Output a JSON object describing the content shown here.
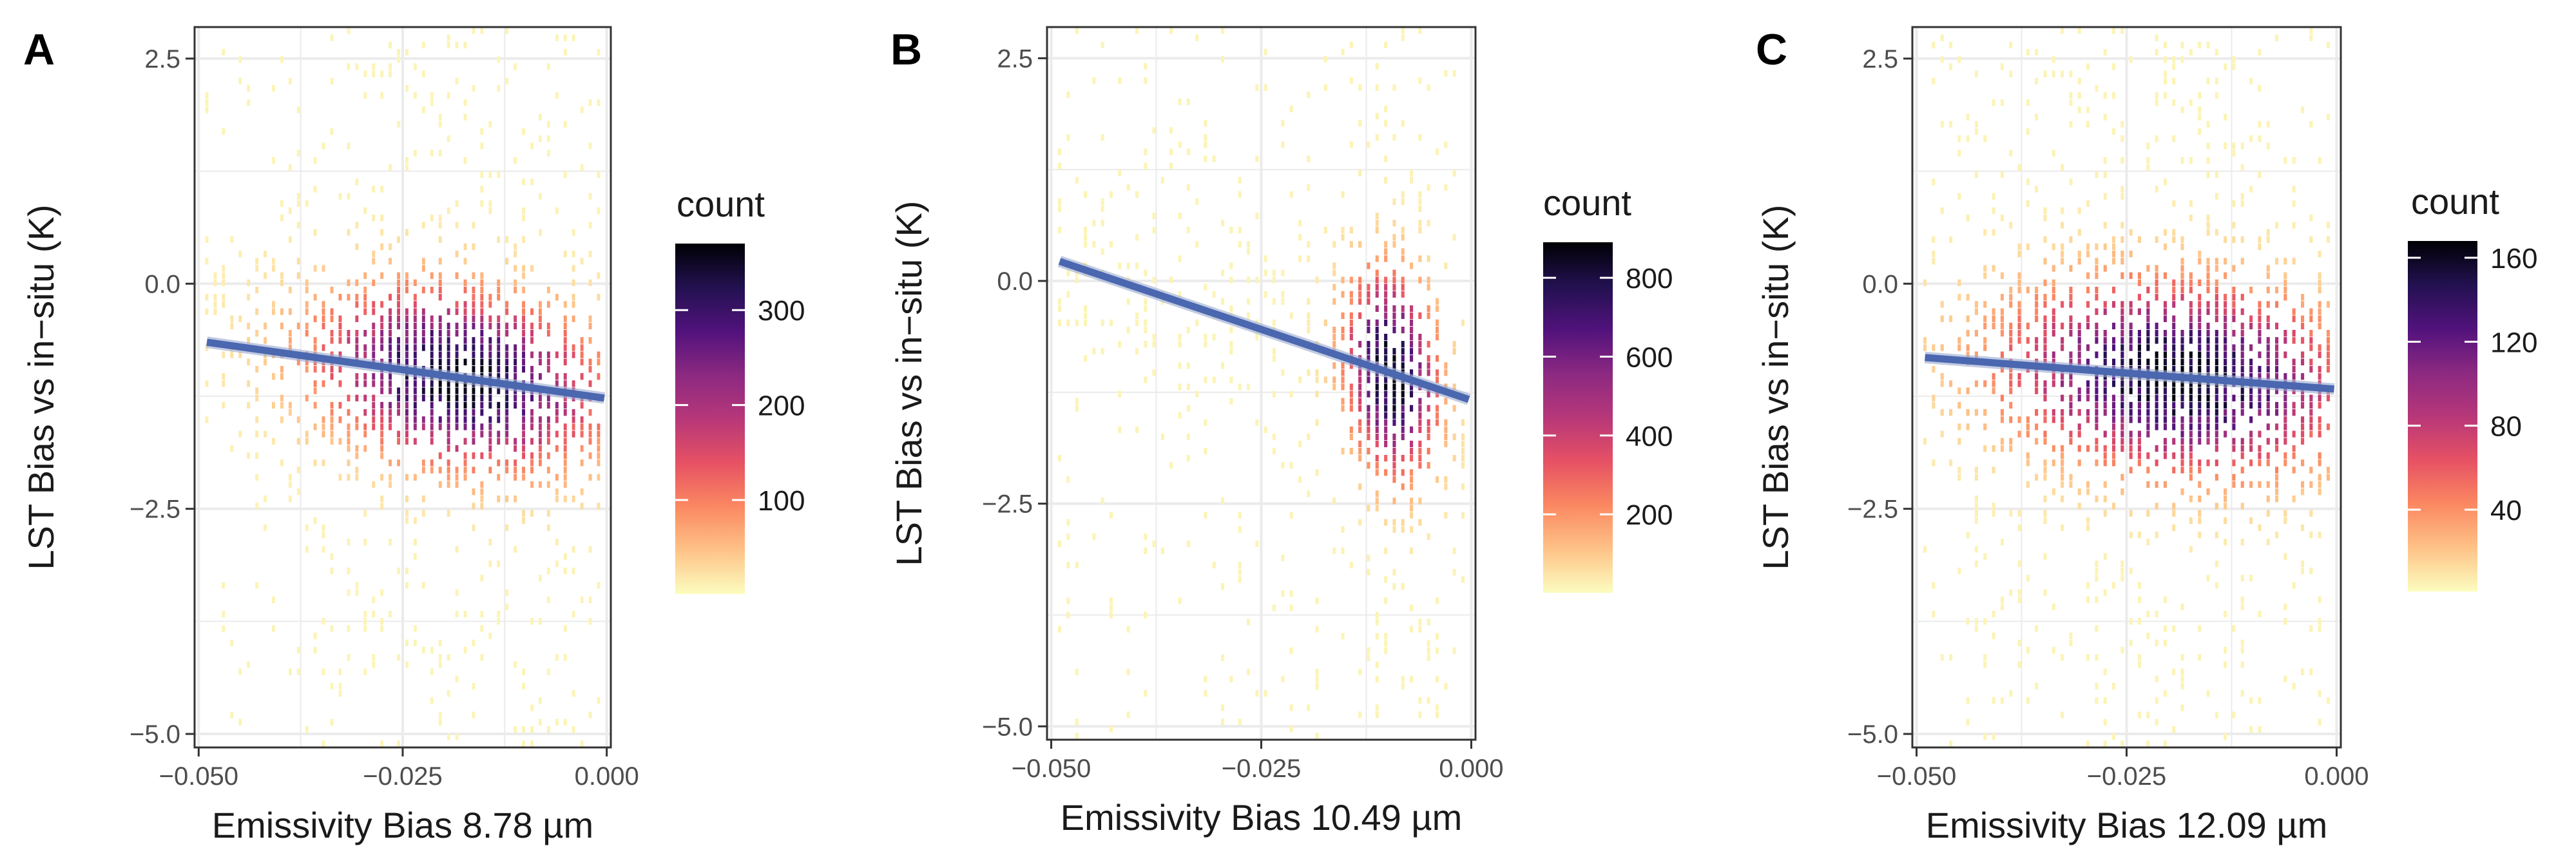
{
  "figure": {
    "colorscale_name": "magma (reversed)",
    "colormap_stops": [
      "#fcfdbf",
      "#fec287",
      "#fb8861",
      "#e65164",
      "#b73779",
      "#8c2981",
      "#51127c",
      "#221150",
      "#000004"
    ],
    "fit_line_color": "#4a67b0",
    "grid_color": "#ebebeb",
    "panel_border_color": "#333333"
  },
  "chart_data": [
    {
      "type": "heatmap",
      "panel_label": "A",
      "title": "",
      "xlabel": "Emissivity Bias 8.78 µm",
      "ylabel": "LST Bias vs in−situ (K)",
      "xlim": [
        -0.0505,
        0.0005
      ],
      "ylim": [
        -5.15,
        2.85
      ],
      "x_ticks": [
        -0.05,
        -0.025,
        0.0
      ],
      "x_tick_labels": [
        "−0.050",
        "−0.025",
        "0.000"
      ],
      "y_ticks": [
        2.5,
        0.0,
        -2.5,
        -5.0
      ],
      "y_tick_labels": [
        "2.5",
        "0.0",
        "−2.5",
        "−5.0"
      ],
      "data_x_range": [
        -0.049,
        -0.001
      ],
      "fit_line": {
        "x": [
          -0.049,
          -0.0003
        ],
        "y": [
          -0.65,
          -1.27
        ]
      },
      "density_center": {
        "x": -0.018,
        "y": -1.05
      },
      "density_spread": {
        "x": 0.011,
        "y": 0.6
      },
      "peak_count": 360,
      "legend": {
        "title": "count",
        "ticks": [
          100,
          200,
          300
        ],
        "tick_labels": [
          "100",
          "200",
          "300"
        ],
        "range": [
          1,
          370
        ]
      }
    },
    {
      "type": "heatmap",
      "panel_label": "B",
      "title": "",
      "xlabel": "Emissivity Bias 10.49 µm",
      "ylabel": "LST Bias vs in−situ (K)",
      "xlim": [
        -0.0505,
        0.0005
      ],
      "ylim": [
        -5.15,
        2.85
      ],
      "x_ticks": [
        -0.05,
        -0.025,
        0.0
      ],
      "x_tick_labels": [
        "−0.050",
        "−0.025",
        "0.000"
      ],
      "y_ticks": [
        2.5,
        0.0,
        -2.5,
        -5.0
      ],
      "y_tick_labels": [
        "2.5",
        "0.0",
        "−2.5",
        "−5.0"
      ],
      "data_x_range": [
        -0.049,
        -0.001
      ],
      "fit_line": {
        "x": [
          -0.049,
          -0.0003
        ],
        "y": [
          0.22,
          -1.33
        ]
      },
      "density_center": {
        "x": -0.0095,
        "y": -1.0
      },
      "density_spread": {
        "x": 0.0035,
        "y": 0.7
      },
      "peak_count": 880,
      "legend": {
        "title": "count",
        "ticks": [
          200,
          400,
          600,
          800
        ],
        "tick_labels": [
          "200",
          "400",
          "600",
          "800"
        ],
        "range": [
          1,
          890
        ]
      }
    },
    {
      "type": "heatmap",
      "panel_label": "C",
      "title": "",
      "xlabel": "Emissivity Bias 12.09 µm",
      "ylabel": "LST Bias vs in−situ (K)",
      "xlim": [
        -0.0505,
        0.0005
      ],
      "ylim": [
        -5.15,
        2.85
      ],
      "x_ticks": [
        -0.05,
        -0.025,
        0.0
      ],
      "x_tick_labels": [
        "−0.050",
        "−0.025",
        "0.000"
      ],
      "y_ticks": [
        2.5,
        0.0,
        -2.5,
        -5.0
      ],
      "y_tick_labels": [
        "2.5",
        "0.0",
        "−2.5",
        "−5.0"
      ],
      "data_x_range": [
        -0.049,
        -0.001
      ],
      "fit_line": {
        "x": [
          -0.049,
          -0.0003
        ],
        "y": [
          -0.82,
          -1.17
        ]
      },
      "density_center": {
        "x": -0.019,
        "y": -0.95
      },
      "density_spread": {
        "x": 0.013,
        "y": 0.65
      },
      "peak_count": 165,
      "legend": {
        "title": "count",
        "ticks": [
          40,
          80,
          120,
          160
        ],
        "tick_labels": [
          "40",
          "80",
          "120",
          "160"
        ],
        "range": [
          1,
          168
        ]
      }
    }
  ]
}
